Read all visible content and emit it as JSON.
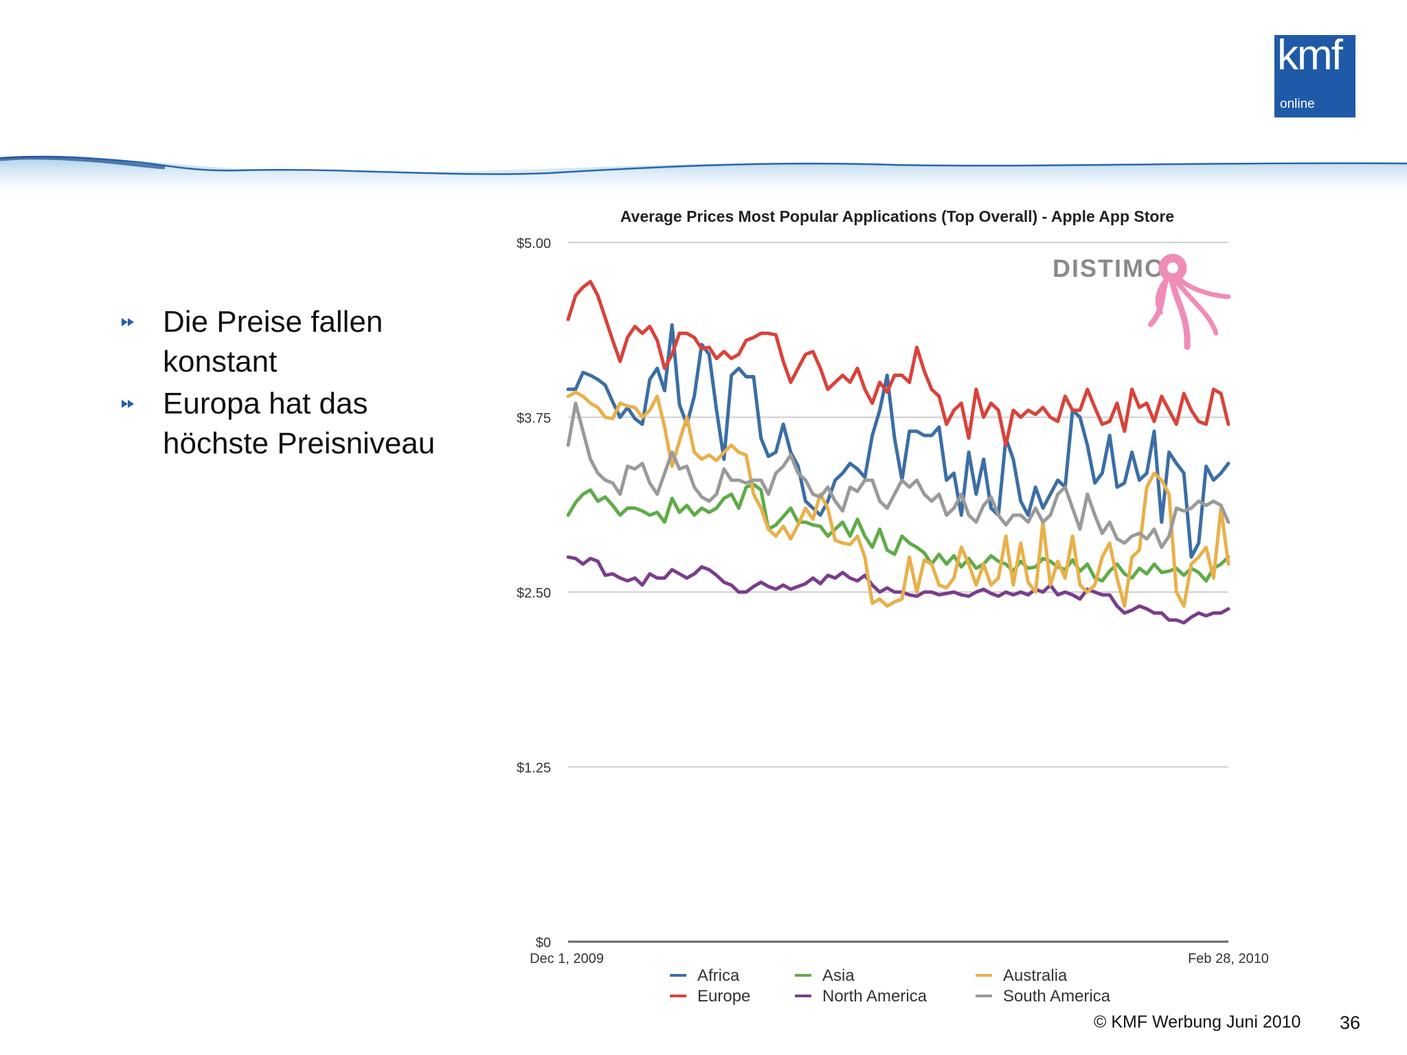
{
  "logo": {
    "text": "kmf",
    "subtext": "online"
  },
  "bullets": [
    {
      "line1": "Die Preise fallen",
      "line2": "konstant"
    },
    {
      "line1": "Europa hat das",
      "line2": "höchste Preisniveau"
    }
  ],
  "footer": {
    "copyright": "© KMF Werbung Juni 2010",
    "page": "36"
  },
  "watermark": {
    "text": "DISTIMO",
    "mascot": "pink-octopus-icon"
  },
  "colors": {
    "Africa": "#3b6ea5",
    "Europe": "#d9423a",
    "Asia": "#5fab48",
    "North America": "#7a3d8c",
    "Australia": "#e9b04a",
    "South America": "#9a9a9a"
  },
  "chart_data": {
    "type": "line",
    "title": "Average Prices Most Popular Applications (Top Overall) - Apple App Store",
    "x_start_label": "Dec 1, 2009",
    "x_end_label": "Feb 28, 2010",
    "x_range": [
      "2009-12-01",
      "2010-02-28"
    ],
    "y_ticks": [
      "$0",
      "$1.25",
      "$2.50",
      "$3.75",
      "$5.00"
    ],
    "y_tick_values": [
      0,
      1.25,
      2.5,
      3.75,
      5.0
    ],
    "ylim": [
      0,
      5.0
    ],
    "grid": true,
    "legend_position": "bottom",
    "x_note": "Each series: daily values from Dec 1, 2009 (first value) to Feb 28, 2010 (last value), 90 days, evenly spaced.",
    "series": [
      {
        "name": "Africa",
        "values": [
          3.95,
          3.95,
          4.07,
          4.05,
          4.02,
          3.98,
          3.86,
          3.75,
          3.82,
          3.74,
          3.7,
          4.02,
          4.1,
          3.94,
          4.41,
          3.84,
          3.7,
          3.9,
          4.27,
          4.2,
          3.8,
          3.45,
          4.05,
          4.1,
          4.04,
          4.04,
          3.6,
          3.47,
          3.5,
          3.7,
          3.5,
          3.4,
          3.15,
          3.1,
          3.05,
          3.15,
          3.3,
          3.35,
          3.42,
          3.38,
          3.32,
          3.62,
          3.8,
          4.05,
          3.6,
          3.3,
          3.65,
          3.65,
          3.62,
          3.62,
          3.68,
          3.3,
          3.35,
          3.05,
          3.5,
          3.2,
          3.45,
          3.1,
          3.05,
          3.6,
          3.45,
          3.15,
          3.05,
          3.25,
          3.1,
          3.2,
          3.3,
          3.25,
          3.8,
          3.75,
          3.55,
          3.28,
          3.35,
          3.62,
          3.25,
          3.28,
          3.5,
          3.3,
          3.35,
          3.65,
          3.0,
          3.5,
          3.42,
          3.35,
          2.75,
          2.85,
          3.4,
          3.3,
          3.35,
          3.42
        ]
      },
      {
        "name": "Europe",
        "values": [
          4.45,
          4.62,
          4.68,
          4.72,
          4.62,
          4.46,
          4.3,
          4.15,
          4.32,
          4.4,
          4.35,
          4.4,
          4.3,
          4.1,
          4.2,
          4.35,
          4.35,
          4.32,
          4.24,
          4.25,
          4.17,
          4.22,
          4.17,
          4.2,
          4.3,
          4.32,
          4.35,
          4.35,
          4.34,
          4.15,
          4.0,
          4.1,
          4.2,
          4.22,
          4.1,
          3.95,
          4.0,
          4.05,
          4.0,
          4.1,
          3.95,
          3.85,
          4.0,
          3.93,
          4.05,
          4.05,
          4.0,
          4.25,
          4.08,
          3.95,
          3.9,
          3.7,
          3.8,
          3.85,
          3.6,
          3.95,
          3.75,
          3.85,
          3.8,
          3.55,
          3.8,
          3.75,
          3.8,
          3.77,
          3.82,
          3.75,
          3.72,
          3.9,
          3.8,
          3.8,
          3.95,
          3.82,
          3.7,
          3.72,
          3.85,
          3.65,
          3.95,
          3.82,
          3.85,
          3.72,
          3.9,
          3.8,
          3.7,
          3.92,
          3.8,
          3.72,
          3.7,
          3.95,
          3.92,
          3.7
        ]
      },
      {
        "name": "Asia",
        "values": [
          3.05,
          3.14,
          3.2,
          3.23,
          3.15,
          3.18,
          3.12,
          3.05,
          3.1,
          3.1,
          3.08,
          3.05,
          3.07,
          3.0,
          3.17,
          3.07,
          3.12,
          3.05,
          3.1,
          3.07,
          3.1,
          3.17,
          3.2,
          3.1,
          3.25,
          3.27,
          3.23,
          2.95,
          2.98,
          3.04,
          3.1,
          3.0,
          3.0,
          2.98,
          2.97,
          2.9,
          2.95,
          3.0,
          2.9,
          3.02,
          2.9,
          2.82,
          2.95,
          2.8,
          2.77,
          2.9,
          2.85,
          2.82,
          2.78,
          2.7,
          2.77,
          2.7,
          2.76,
          2.68,
          2.74,
          2.67,
          2.7,
          2.76,
          2.72,
          2.7,
          2.65,
          2.72,
          2.67,
          2.68,
          2.74,
          2.72,
          2.68,
          2.66,
          2.73,
          2.65,
          2.7,
          2.6,
          2.58,
          2.65,
          2.7,
          2.63,
          2.6,
          2.67,
          2.63,
          2.7,
          2.64,
          2.65,
          2.67,
          2.62,
          2.67,
          2.64,
          2.58,
          2.67,
          2.7,
          2.75
        ]
      },
      {
        "name": "North America",
        "values": [
          2.75,
          2.74,
          2.7,
          2.74,
          2.72,
          2.62,
          2.63,
          2.6,
          2.58,
          2.6,
          2.55,
          2.63,
          2.6,
          2.6,
          2.66,
          2.63,
          2.6,
          2.63,
          2.68,
          2.66,
          2.62,
          2.57,
          2.55,
          2.5,
          2.5,
          2.54,
          2.57,
          2.54,
          2.52,
          2.55,
          2.52,
          2.54,
          2.56,
          2.6,
          2.56,
          2.62,
          2.6,
          2.64,
          2.6,
          2.58,
          2.62,
          2.55,
          2.5,
          2.53,
          2.5,
          2.5,
          2.48,
          2.47,
          2.5,
          2.5,
          2.48,
          2.49,
          2.5,
          2.48,
          2.47,
          2.5,
          2.52,
          2.49,
          2.47,
          2.5,
          2.48,
          2.5,
          2.48,
          2.52,
          2.5,
          2.55,
          2.48,
          2.5,
          2.48,
          2.45,
          2.52,
          2.5,
          2.48,
          2.48,
          2.4,
          2.35,
          2.37,
          2.4,
          2.38,
          2.35,
          2.35,
          2.3,
          2.3,
          2.28,
          2.32,
          2.35,
          2.33,
          2.35,
          2.35,
          2.38
        ]
      },
      {
        "name": "Australia",
        "values": [
          3.9,
          3.93,
          3.9,
          3.85,
          3.82,
          3.75,
          3.74,
          3.85,
          3.83,
          3.82,
          3.75,
          3.8,
          3.9,
          3.68,
          3.4,
          3.58,
          3.75,
          3.5,
          3.45,
          3.48,
          3.44,
          3.5,
          3.55,
          3.5,
          3.48,
          3.2,
          3.1,
          2.95,
          2.9,
          2.97,
          2.88,
          2.98,
          3.1,
          3.02,
          3.2,
          3.1,
          2.87,
          2.85,
          2.84,
          2.9,
          2.75,
          2.42,
          2.45,
          2.4,
          2.43,
          2.45,
          2.75,
          2.5,
          2.73,
          2.7,
          2.55,
          2.53,
          2.6,
          2.82,
          2.7,
          2.55,
          2.7,
          2.55,
          2.6,
          2.9,
          2.55,
          2.85,
          2.57,
          2.5,
          3.0,
          2.55,
          2.72,
          2.6,
          2.9,
          2.55,
          2.5,
          2.55,
          2.75,
          2.85,
          2.6,
          2.4,
          2.75,
          2.8,
          3.25,
          3.35,
          3.3,
          3.2,
          2.5,
          2.4,
          2.7,
          2.75,
          2.82,
          2.6,
          3.1,
          2.7
        ]
      },
      {
        "name": "South America",
        "values": [
          3.55,
          3.85,
          3.65,
          3.45,
          3.35,
          3.3,
          3.28,
          3.2,
          3.4,
          3.38,
          3.42,
          3.28,
          3.2,
          3.35,
          3.5,
          3.38,
          3.4,
          3.25,
          3.18,
          3.15,
          3.2,
          3.38,
          3.3,
          3.3,
          3.28,
          3.3,
          3.3,
          3.2,
          3.35,
          3.4,
          3.48,
          3.35,
          3.3,
          3.2,
          3.18,
          3.25,
          3.15,
          3.08,
          3.25,
          3.22,
          3.3,
          3.3,
          3.15,
          3.1,
          3.2,
          3.3,
          3.25,
          3.3,
          3.2,
          3.15,
          3.2,
          3.05,
          3.1,
          3.2,
          3.05,
          3.0,
          3.12,
          3.18,
          3.05,
          2.98,
          3.05,
          3.05,
          3.0,
          3.1,
          3.0,
          3.05,
          3.2,
          3.25,
          3.1,
          2.95,
          3.2,
          3.05,
          2.92,
          3.0,
          2.88,
          2.85,
          2.9,
          2.92,
          2.88,
          2.95,
          2.82,
          2.9,
          3.1,
          3.08,
          3.1,
          3.15,
          3.12,
          3.15,
          3.12,
          3.0
        ]
      }
    ]
  }
}
